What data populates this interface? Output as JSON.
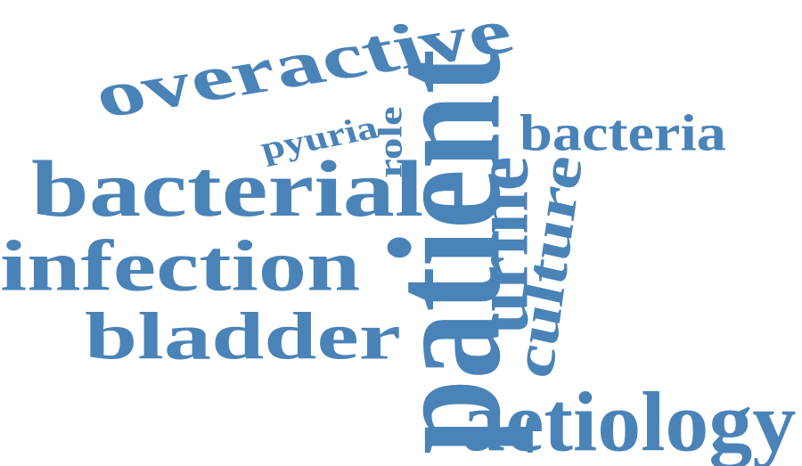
{
  "word_color": "#4a83b7",
  "words": [
    {
      "key": "overactive",
      "text": "overactive",
      "orientation": "tilted"
    },
    {
      "key": "pyuria",
      "text": "pyuria",
      "orientation": "tilted"
    },
    {
      "key": "role",
      "text": "role",
      "orientation": "vertical"
    },
    {
      "key": "bacterial",
      "text": "bacterial",
      "orientation": "horizontal"
    },
    {
      "key": "infection",
      "text": "infection",
      "orientation": "horizontal"
    },
    {
      "key": "bladder",
      "text": "bladder",
      "orientation": "horizontal"
    },
    {
      "key": "patient",
      "text": "patient",
      "orientation": "vertical"
    },
    {
      "key": "bacteria",
      "text": "bacteria",
      "orientation": "horizontal"
    },
    {
      "key": "urine",
      "text": "urine",
      "orientation": "vertical"
    },
    {
      "key": "culture",
      "text": "culture",
      "orientation": "vertical"
    },
    {
      "key": "aetiology",
      "text": "aetiology",
      "orientation": "horizontal"
    }
  ]
}
